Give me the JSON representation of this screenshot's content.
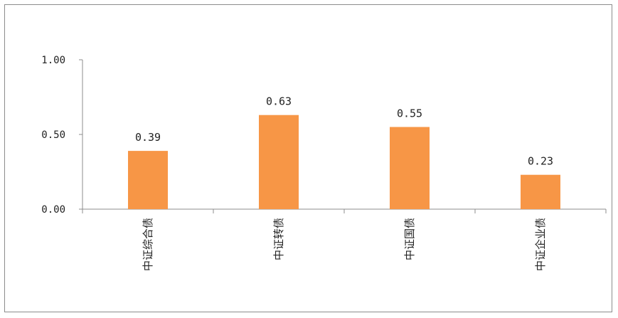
{
  "chart_data": {
    "type": "bar",
    "categories": [
      "中证综合债",
      "中证转债",
      "中证国债",
      "中证企业债"
    ],
    "values": [
      0.39,
      0.63,
      0.55,
      0.23
    ],
    "data_labels": [
      "0.39",
      "0.63",
      "0.55",
      "0.23"
    ],
    "ylim": [
      0,
      1.0
    ],
    "yticks": [
      0.0,
      0.5,
      1.0
    ],
    "ytick_labels": [
      "0.00",
      "0.50",
      "1.00"
    ],
    "grid": false,
    "legend": "none",
    "bar_color": "#F79646"
  }
}
